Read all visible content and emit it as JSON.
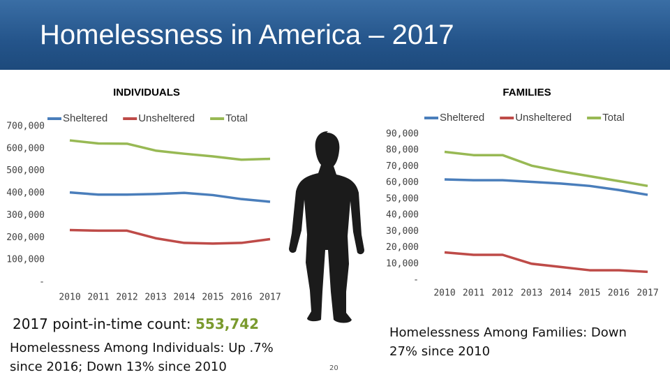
{
  "title": "Homelessness in America – 2017",
  "count_label": "2017 point-in-time count: ",
  "count_value": "553,742",
  "individuals_note": "Homelessness Among Individuals: Up .7% since 2016; Down 13% since 2010",
  "families_note": "Homelessness Among Families: Down 27% since 2010",
  "slide_number": "20",
  "chart_data": [
    {
      "type": "line",
      "title": "INDIVIDUALS",
      "categories": [
        "2010",
        "2011",
        "2012",
        "2013",
        "2014",
        "2015",
        "2016",
        "2017"
      ],
      "series": [
        {
          "name": "Sheltered",
          "color": "#4a7ebb",
          "values": [
            403000,
            393000,
            393000,
            396000,
            401000,
            391000,
            373000,
            361000
          ]
        },
        {
          "name": "Unsheltered",
          "color": "#be4b48",
          "values": [
            234000,
            231000,
            231000,
            197000,
            176000,
            173000,
            176000,
            193000
          ]
        },
        {
          "name": "Total",
          "color": "#98b954",
          "values": [
            637000,
            623000,
            622000,
            591000,
            577000,
            565000,
            550000,
            554000
          ]
        }
      ],
      "ylim": [
        0,
        700000
      ],
      "yticks": [
        {
          "value": 0,
          "label": "-"
        },
        {
          "value": 100000,
          "label": "100,000"
        },
        {
          "value": 200000,
          "label": "200,000"
        },
        {
          "value": 300000,
          "label": "300,000"
        },
        {
          "value": 400000,
          "label": "400,000"
        },
        {
          "value": 500000,
          "label": "500,000"
        },
        {
          "value": 600000,
          "label": "600,000"
        },
        {
          "value": 700000,
          "label": "700,000"
        }
      ],
      "legend": "top"
    },
    {
      "type": "line",
      "title": "FAMILIES",
      "categories": [
        "2010",
        "2011",
        "2012",
        "2013",
        "2014",
        "2015",
        "2016",
        "2017"
      ],
      "series": [
        {
          "name": "Sheltered",
          "color": "#4a7ebb",
          "values": [
            62000,
            61500,
            61500,
            60500,
            59500,
            58000,
            55500,
            52500
          ]
        },
        {
          "name": "Unsheltered",
          "color": "#be4b48",
          "values": [
            17000,
            15500,
            15500,
            10000,
            8000,
            6000,
            6000,
            5000
          ]
        },
        {
          "name": "Total",
          "color": "#98b954",
          "values": [
            79000,
            77000,
            77000,
            70500,
            67000,
            64000,
            61000,
            58000
          ]
        }
      ],
      "ylim": [
        0,
        90000
      ],
      "yticks": [
        {
          "value": 0,
          "label": "-"
        },
        {
          "value": 10000,
          "label": "10,000"
        },
        {
          "value": 20000,
          "label": "20,000"
        },
        {
          "value": 30000,
          "label": "30,000"
        },
        {
          "value": 40000,
          "label": "40,000"
        },
        {
          "value": 50000,
          "label": "50,000"
        },
        {
          "value": 60000,
          "label": "60,000"
        },
        {
          "value": 70000,
          "label": "70,000"
        },
        {
          "value": 80000,
          "label": "80,000"
        },
        {
          "value": 90000,
          "label": "90,000"
        }
      ],
      "legend": "top"
    }
  ]
}
